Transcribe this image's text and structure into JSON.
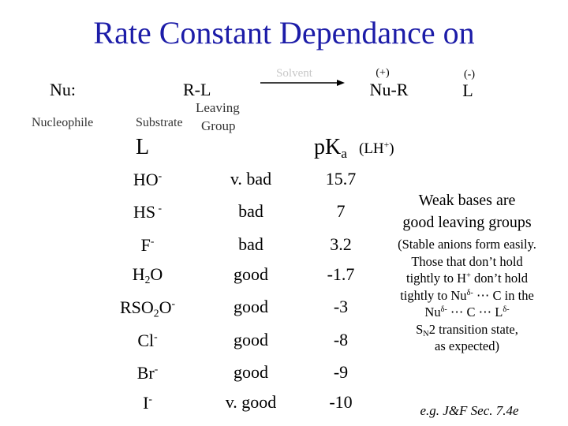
{
  "title": "Rate Constant Dependance on",
  "reaction": {
    "nucleophile_symbol": "Nu:",
    "substrate_symbol": "R-L",
    "solvent": "Solvent",
    "product_charge": "(+)",
    "product": "Nu-R",
    "leaving_charge": "(-)",
    "leaving": "L",
    "nucleophile_label": "Nucleophile",
    "substrate_label": "Substrate",
    "leaving_group_label": [
      "Leaving",
      "Group"
    ]
  },
  "table": {
    "header": {
      "group": "L",
      "pka_symbol": [
        {
          "t": "p"
        },
        {
          "t": "K"
        },
        {
          "t": "a",
          "pos": "sub"
        }
      ],
      "pka_note": [
        {
          "t": "(LH"
        },
        {
          "t": "+",
          "pos": "sup"
        },
        {
          "t": ")"
        }
      ]
    },
    "rows": [
      {
        "group": [
          {
            "t": "HO"
          },
          {
            "t": "-",
            "pos": "sup"
          }
        ],
        "quality": "v. bad",
        "pka": 15.7
      },
      {
        "group": [
          {
            "t": "HS"
          },
          {
            "t": " -",
            "pos": "sup"
          }
        ],
        "quality": "bad",
        "pka": 7
      },
      {
        "group": [
          {
            "t": "F"
          },
          {
            "t": "-",
            "pos": "sup"
          }
        ],
        "quality": "bad",
        "pka": 3.2
      },
      {
        "group": [
          {
            "t": "H"
          },
          {
            "t": "2",
            "pos": "sub"
          },
          {
            "t": "O"
          }
        ],
        "quality": "good",
        "pka": -1.7
      },
      {
        "group": [
          {
            "t": "RSO"
          },
          {
            "t": "2",
            "pos": "sub"
          },
          {
            "t": "O"
          },
          {
            "t": "-",
            "pos": "sup"
          }
        ],
        "quality": "good",
        "pka": -3
      },
      {
        "group": [
          {
            "t": "Cl"
          },
          {
            "t": "-",
            "pos": "sup"
          }
        ],
        "quality": "good",
        "pka": -8
      },
      {
        "group": [
          {
            "t": "Br"
          },
          {
            "t": "-",
            "pos": "sup"
          }
        ],
        "quality": "good",
        "pka": -9
      },
      {
        "group": [
          {
            "t": "I"
          },
          {
            "t": "-",
            "pos": "sup"
          }
        ],
        "quality": "v. good",
        "pka": -10
      }
    ]
  },
  "note": {
    "headline": [
      "Weak bases are",
      "good leaving groups"
    ],
    "lines": [
      [
        {
          "t": "(Stable anions form easily."
        }
      ],
      [
        {
          "t": "Those that don’t hold"
        }
      ],
      [
        {
          "t": "tightly to H"
        },
        {
          "t": "+",
          "pos": "sup"
        },
        {
          "t": " don’t hold"
        }
      ],
      [
        {
          "t": "tightly to Nu"
        },
        {
          "t": "δ-",
          "pos": "sup"
        },
        {
          "t": " ⋯ C in the"
        }
      ],
      [
        {
          "t": "Nu"
        },
        {
          "t": "δ-",
          "pos": "sup"
        },
        {
          "t": " ⋯ C ⋯ L"
        },
        {
          "t": "δ-",
          "pos": "sup"
        }
      ],
      [
        {
          "t": "S"
        },
        {
          "t": "N",
          "pos": "sub"
        },
        {
          "t": "2 transition state,"
        }
      ],
      [
        {
          "t": "as expected)"
        }
      ]
    ],
    "reference": "e.g. J&F Sec. 7.4e"
  }
}
